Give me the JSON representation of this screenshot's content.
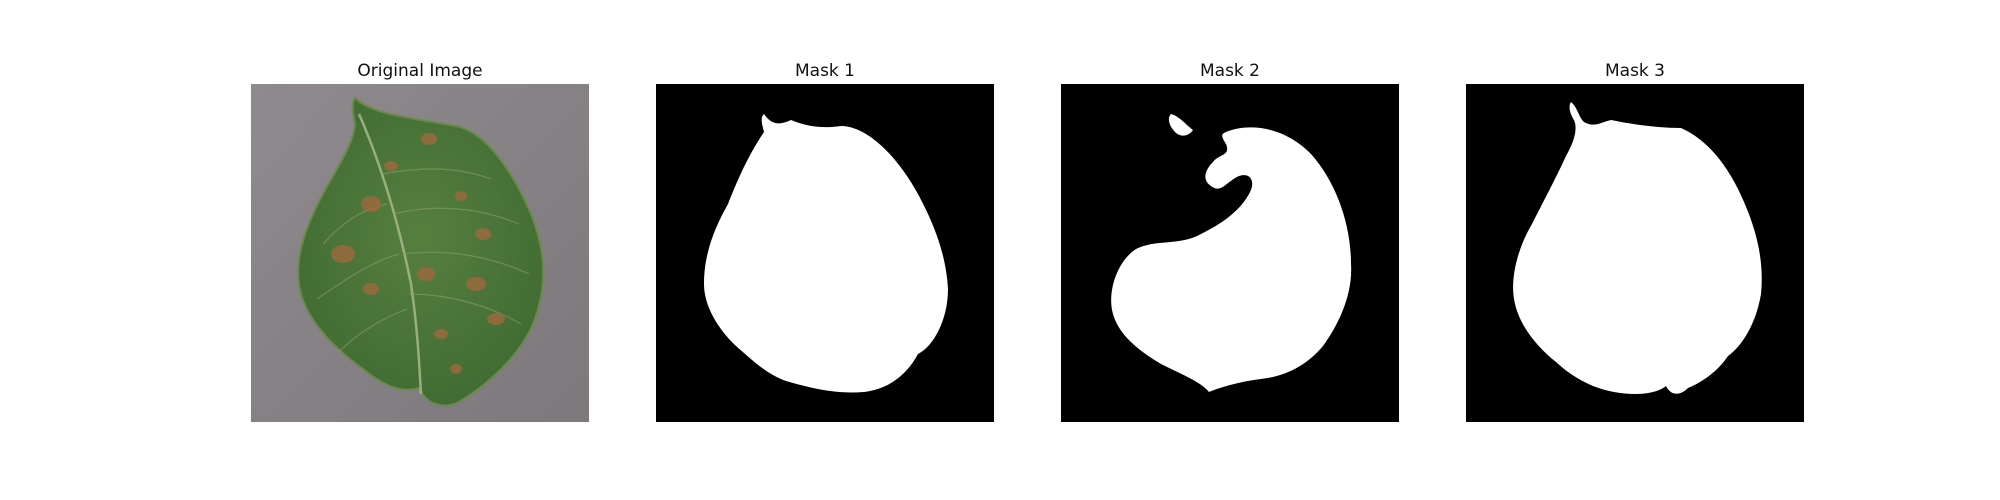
{
  "figure": {
    "panels": [
      {
        "title": "Original Image"
      },
      {
        "title": "Mask 1"
      },
      {
        "title": "Mask 2"
      },
      {
        "title": "Mask 3"
      }
    ]
  },
  "colors": {
    "mask_background": "#000000",
    "mask_foreground": "#ffffff",
    "photo_background": "#8a8589",
    "leaf_green": "#4e7a3a",
    "lesion_brown": "#9a6a3e"
  }
}
